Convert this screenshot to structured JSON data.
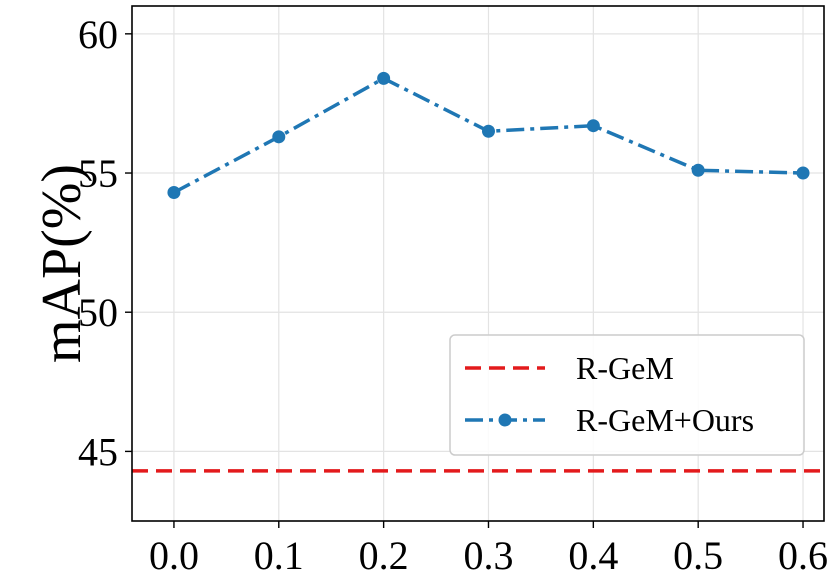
{
  "chart_data": {
    "type": "line",
    "title": "",
    "xlabel": "",
    "ylabel": "mAP(%)",
    "xlim": [
      -0.04,
      0.62
    ],
    "ylim": [
      42.5,
      61
    ],
    "x_ticks": [
      0.0,
      0.1,
      0.2,
      0.3,
      0.4,
      0.5,
      0.6
    ],
    "x_tick_labels": [
      "0.0",
      "0.1",
      "0.2",
      "0.3",
      "0.4",
      "0.5",
      "0.6"
    ],
    "y_ticks": [
      45,
      50,
      55,
      60
    ],
    "y_tick_labels": [
      "45",
      "50",
      "55",
      "60"
    ],
    "grid": true,
    "legend_position": "lower-right",
    "series": [
      {
        "name": "R-GeM",
        "kind": "hline",
        "color": "#e31a1c",
        "line_style": "dashed",
        "y": 44.3
      },
      {
        "name": "R-GeM+Ours",
        "kind": "line",
        "color": "#1f77b4",
        "line_style": "dashdot",
        "marker": "circle",
        "x": [
          0.0,
          0.1,
          0.2,
          0.3,
          0.4,
          0.5,
          0.6
        ],
        "y": [
          54.3,
          56.3,
          58.4,
          56.5,
          56.7,
          55.1,
          55.0
        ]
      }
    ]
  }
}
